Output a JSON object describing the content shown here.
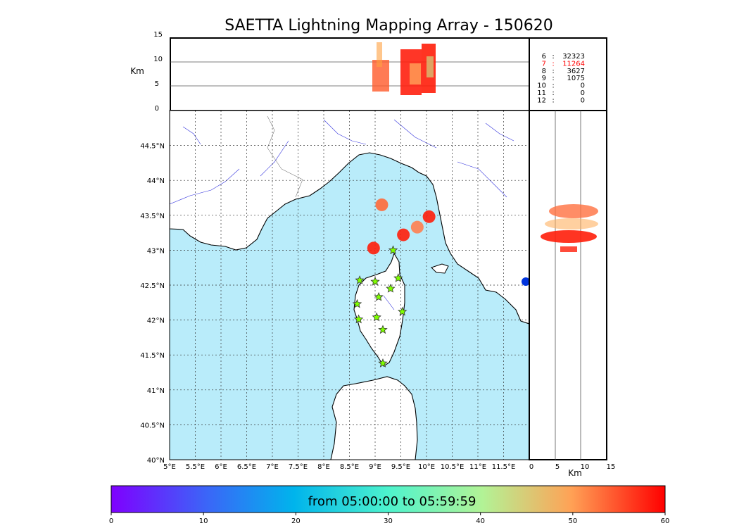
{
  "title": "SAETTA Lightning Mapping Array - 150620",
  "colors": {
    "sea": "#b9ecfa",
    "land": "#ffffff",
    "rivers": "#3333dd",
    "grid": "#333333",
    "station_fill": "#7fff00",
    "highlight": "#ff0000"
  },
  "altitude_panel": {
    "ylabel": "Km",
    "yticks": [
      "15",
      "10",
      "5",
      "0"
    ]
  },
  "side_panel": {
    "xlabel": "Km",
    "xticks": [
      "0",
      "5",
      "10",
      "15"
    ]
  },
  "stats": [
    {
      "stations": "6",
      "sep": ":",
      "count": "32323",
      "highlight": false
    },
    {
      "stations": "7",
      "sep": ":",
      "count": "11264",
      "highlight": true
    },
    {
      "stations": "8",
      "sep": ":",
      "count": "3627",
      "highlight": false
    },
    {
      "stations": "9",
      "sep": ":",
      "count": "1075",
      "highlight": false
    },
    {
      "stations": "10",
      "sep": ":",
      "count": "0",
      "highlight": false
    },
    {
      "stations": "11",
      "sep": ":",
      "count": "0",
      "highlight": false
    },
    {
      "stations": "12",
      "sep": ":",
      "count": "0",
      "highlight": false
    }
  ],
  "map": {
    "lon_ticks": [
      "5°E",
      "5.5°E",
      "6°E",
      "6.5°E",
      "7°E",
      "7.5°E",
      "8°E",
      "8.5°E",
      "9°E",
      "9.5°E",
      "10°E",
      "10.5°E",
      "11°E",
      "11.5°E"
    ],
    "lat_ticks": [
      "44.5°N",
      "44°N",
      "43.5°N",
      "43°N",
      "42.5°N",
      "42°N",
      "41.5°N",
      "41°N",
      "40.5°N",
      "40°N"
    ],
    "lon_range": [
      5,
      12
    ],
    "lat_range": [
      40,
      45
    ],
    "stations": [
      {
        "lon": 9.35,
        "lat": 43.0
      },
      {
        "lon": 8.7,
        "lat": 42.57
      },
      {
        "lon": 9.0,
        "lat": 42.55
      },
      {
        "lon": 9.45,
        "lat": 42.6
      },
      {
        "lon": 9.3,
        "lat": 42.45
      },
      {
        "lon": 9.07,
        "lat": 42.33
      },
      {
        "lon": 8.65,
        "lat": 42.23
      },
      {
        "lon": 9.53,
        "lat": 42.12
      },
      {
        "lon": 8.68,
        "lat": 42.01
      },
      {
        "lon": 9.03,
        "lat": 42.04
      },
      {
        "lon": 9.15,
        "lat": 41.86
      },
      {
        "lon": 9.15,
        "lat": 41.38
      }
    ],
    "lightning_clusters": [
      {
        "lon": 9.13,
        "lat": 43.65,
        "color": "#ff6a3a"
      },
      {
        "lon": 9.55,
        "lat": 43.22,
        "color": "#ff1e0a"
      },
      {
        "lon": 9.82,
        "lat": 43.33,
        "color": "#ff7f50"
      },
      {
        "lon": 10.05,
        "lat": 43.48,
        "color": "#ff1e0a"
      },
      {
        "lon": 8.97,
        "lat": 43.03,
        "color": "#ff1e0a"
      }
    ]
  },
  "colorbar": {
    "label": "from 05:00:00 to 05:59:59",
    "ticks": [
      "0",
      "10",
      "20",
      "30",
      "40",
      "50",
      "60"
    ],
    "range": [
      0,
      60
    ]
  }
}
